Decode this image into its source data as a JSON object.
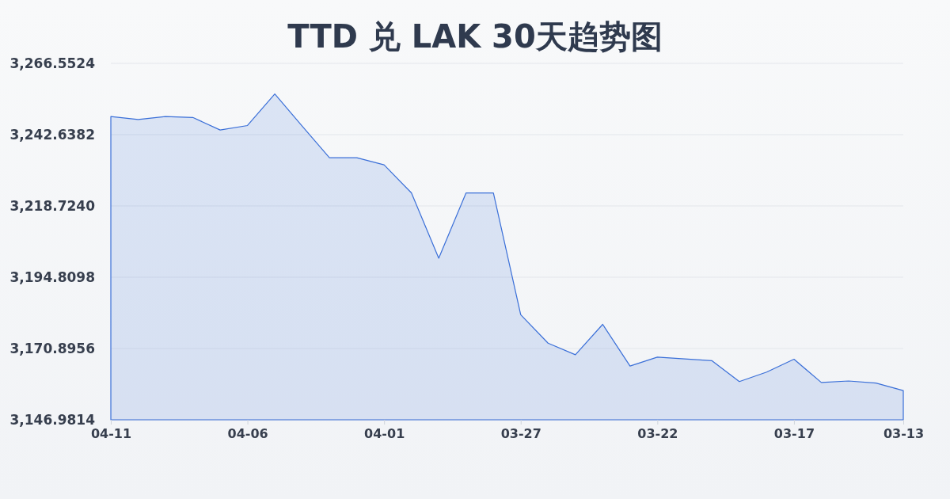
{
  "chart_data": {
    "type": "area",
    "title": "TTD 兑 LAK 30天趋势图",
    "categories": [
      "04-11",
      null,
      null,
      null,
      null,
      "04-06",
      null,
      null,
      null,
      null,
      "04-01",
      null,
      null,
      null,
      null,
      "03-27",
      null,
      null,
      null,
      null,
      "03-22",
      null,
      null,
      null,
      null,
      "03-17",
      null,
      null,
      null,
      "03-13"
    ],
    "series": [
      {
        "color": "#3a6fd8",
        "values": [
          3248.7,
          3247.7,
          3248.7,
          3248.4,
          3244.2,
          3245.7,
          3256.3,
          3245.5,
          3234.9,
          3234.9,
          3232.5,
          3223.1,
          3201.2,
          3223.1,
          3223.1,
          3182.2,
          3172.7,
          3168.8,
          3179.0,
          3165.0,
          3168.0,
          3167.4,
          3166.8,
          3159.8,
          3163.0,
          3167.3,
          3159.5,
          3160.0,
          3159.3,
          3156.8
        ]
      }
    ],
    "ylim": [
      3146.9814,
      3266.5524
    ],
    "yticks": [
      {
        "value": 3146.9814,
        "label": "3,146.9814"
      },
      {
        "value": 3170.8956,
        "label": "3,170.8956"
      },
      {
        "value": 3194.8098,
        "label": "3,194.8098"
      },
      {
        "value": 3218.724,
        "label": "3,218.7240"
      },
      {
        "value": 3242.6382,
        "label": "3,242.6382"
      },
      {
        "value": 3266.5524,
        "label": "3,266.5524"
      }
    ],
    "grid": "y"
  }
}
